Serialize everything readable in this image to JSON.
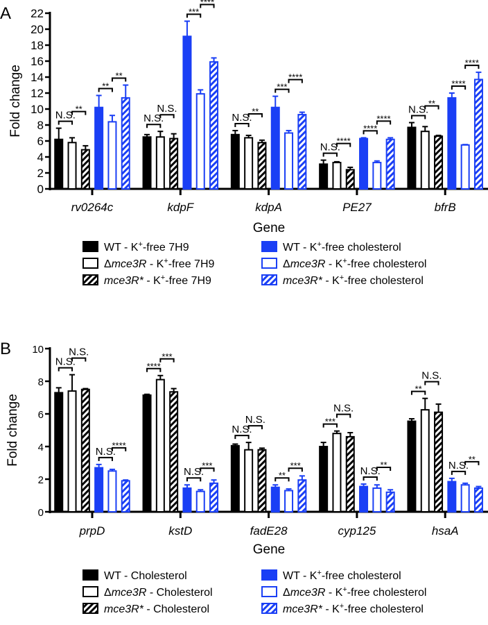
{
  "colors": {
    "black": "#000000",
    "blue": "#1a3ff5"
  },
  "chart_data": [
    {
      "type": "bar",
      "panel_label": "A",
      "title": "",
      "xlabel": "Gene",
      "ylabel": "Fold change",
      "ylim": [
        0,
        22
      ],
      "yticks": [
        0,
        2,
        4,
        6,
        8,
        10,
        12,
        14,
        16,
        18,
        20,
        22
      ],
      "categories": [
        "rv0264c",
        "kdpF",
        "kdpA",
        "PE27",
        "bfrB"
      ],
      "series": [
        {
          "name": "WT - K+-free 7H9",
          "style": "black-solid",
          "values": [
            6.2,
            6.5,
            6.8,
            3.1,
            7.7
          ],
          "errors": [
            1.4,
            0.3,
            0.5,
            0.5,
            0.6
          ]
        },
        {
          "name": "Δmce3R - K+-free 7H9",
          "style": "black-open",
          "values": [
            5.8,
            6.5,
            6.4,
            3.3,
            7.2
          ],
          "errors": [
            0.6,
            0.7,
            0.3,
            0.1,
            0.6
          ]
        },
        {
          "name": "mce3R* - K+-free 7H9",
          "style": "black-hatch",
          "values": [
            4.9,
            6.3,
            5.8,
            2.4,
            6.6
          ],
          "errors": [
            0.5,
            0.6,
            0.3,
            0.3,
            0.1
          ]
        },
        {
          "name": "WT - K+-free cholesterol",
          "style": "blue-solid",
          "values": [
            10.2,
            19.1,
            10.2,
            6.3,
            11.4
          ],
          "errors": [
            1.5,
            1.9,
            1.4,
            0.1,
            0.6
          ]
        },
        {
          "name": "Δmce3R - K+-free cholesterol",
          "style": "blue-open",
          "values": [
            8.4,
            11.9,
            7.0,
            3.3,
            5.5
          ],
          "errors": [
            0.8,
            0.5,
            0.3,
            0.2,
            0.05
          ]
        },
        {
          "name": "mce3R* - K+-free cholesterol",
          "style": "blue-hatch",
          "values": [
            11.4,
            15.9,
            9.3,
            6.2,
            13.7
          ],
          "errors": [
            1.6,
            0.5,
            0.3,
            0.2,
            0.9
          ]
        }
      ],
      "significance": [
        [
          "N.S.",
          "**",
          "**",
          "**"
        ],
        [
          "N.S.",
          "N.S.",
          "***",
          "****"
        ],
        [
          "N.S.",
          "**",
          "***",
          "****"
        ],
        [
          "N.S.",
          "****",
          "****",
          "****"
        ],
        [
          "N.S.",
          "**",
          "****",
          "****"
        ]
      ],
      "legend": [
        [
          {
            "t": "WT - K"
          },
          {
            "t": "+",
            "sup": true
          },
          {
            "t": "-free 7H9"
          }
        ],
        [
          {
            "t": "Δ"
          },
          {
            "t": "mce3R",
            "i": true
          },
          {
            "t": " - K"
          },
          {
            "t": "+",
            "sup": true
          },
          {
            "t": "-free 7H9"
          }
        ],
        [
          {
            "t": "mce3R*",
            "i": true
          },
          {
            "t": " - K"
          },
          {
            "t": "+",
            "sup": true
          },
          {
            "t": "-free 7H9"
          }
        ],
        [
          {
            "t": "WT - K"
          },
          {
            "t": "+",
            "sup": true
          },
          {
            "t": "-free cholesterol"
          }
        ],
        [
          {
            "t": "Δ"
          },
          {
            "t": "mce3R",
            "i": true
          },
          {
            "t": " - K"
          },
          {
            "t": "+",
            "sup": true
          },
          {
            "t": "-free cholesterol"
          }
        ],
        [
          {
            "t": "mce3R*",
            "i": true
          },
          {
            "t": " - K"
          },
          {
            "t": "+",
            "sup": true
          },
          {
            "t": "-free cholesterol"
          }
        ]
      ],
      "legend_position": "bottom"
    },
    {
      "type": "bar",
      "panel_label": "B",
      "title": "",
      "xlabel": "Gene",
      "ylabel": "Fold change",
      "ylim": [
        0,
        10
      ],
      "yticks": [
        0,
        2,
        4,
        6,
        8,
        10
      ],
      "categories": [
        "prpD",
        "kstD",
        "fadE28",
        "cyp125",
        "hsaA"
      ],
      "series": [
        {
          "name": "WT - Cholesterol",
          "style": "black-solid",
          "values": [
            7.3,
            7.15,
            4.05,
            4.0,
            5.55
          ],
          "errors": [
            0.3,
            0.05,
            0.1,
            0.25,
            0.15
          ]
        },
        {
          "name": "Δmce3R - Cholesterol",
          "style": "black-open",
          "values": [
            7.4,
            8.1,
            3.8,
            4.8,
            6.25
          ],
          "errors": [
            1.0,
            0.25,
            0.45,
            0.15,
            0.7
          ]
        },
        {
          "name": "mce3R* - Cholesterol",
          "style": "black-hatch",
          "values": [
            7.5,
            7.35,
            3.8,
            4.6,
            6.1
          ],
          "errors": [
            0.05,
            0.2,
            0.1,
            0.25,
            0.5
          ]
        },
        {
          "name": "WT - K+-free cholesterol",
          "style": "blue-solid",
          "values": [
            2.7,
            1.45,
            1.5,
            1.55,
            1.85
          ],
          "errors": [
            0.2,
            0.2,
            0.15,
            0.15,
            0.2
          ]
        },
        {
          "name": "Δmce3R - K+-free cholesterol",
          "style": "blue-open",
          "values": [
            2.5,
            1.25,
            1.3,
            1.45,
            1.65
          ],
          "errors": [
            0.1,
            0.1,
            0.1,
            0.2,
            0.1
          ]
        },
        {
          "name": "mce3R* - K+-free cholesterol",
          "style": "blue-hatch",
          "values": [
            1.9,
            1.75,
            1.95,
            1.2,
            1.45
          ],
          "errors": [
            0.05,
            0.2,
            0.25,
            0.15,
            0.1
          ]
        }
      ],
      "significance": [
        [
          "N.S.",
          "N.S.",
          "N.S.",
          "****"
        ],
        [
          "****",
          "***",
          "N.S.",
          "***"
        ],
        [
          "N.S.",
          "N.S.",
          "**",
          "***"
        ],
        [
          "***",
          "N.S.",
          "N.S.",
          "**"
        ],
        [
          "**",
          "N.S.",
          "N.S.",
          "**"
        ]
      ],
      "legend": [
        [
          {
            "t": "WT - Cholesterol"
          }
        ],
        [
          {
            "t": "Δ"
          },
          {
            "t": "mce3R",
            "i": true
          },
          {
            "t": " - Cholesterol"
          }
        ],
        [
          {
            "t": "mce3R*",
            "i": true
          },
          {
            "t": " - Cholesterol"
          }
        ],
        [
          {
            "t": "WT - K"
          },
          {
            "t": "+",
            "sup": true
          },
          {
            "t": "-free cholesterol"
          }
        ],
        [
          {
            "t": "Δ"
          },
          {
            "t": "mce3R",
            "i": true
          },
          {
            "t": " - K"
          },
          {
            "t": "+",
            "sup": true
          },
          {
            "t": "-free cholesterol"
          }
        ],
        [
          {
            "t": "mce3R*",
            "i": true
          },
          {
            "t": " - K"
          },
          {
            "t": "+",
            "sup": true
          },
          {
            "t": "-free cholesterol"
          }
        ]
      ],
      "legend_position": "bottom"
    }
  ]
}
